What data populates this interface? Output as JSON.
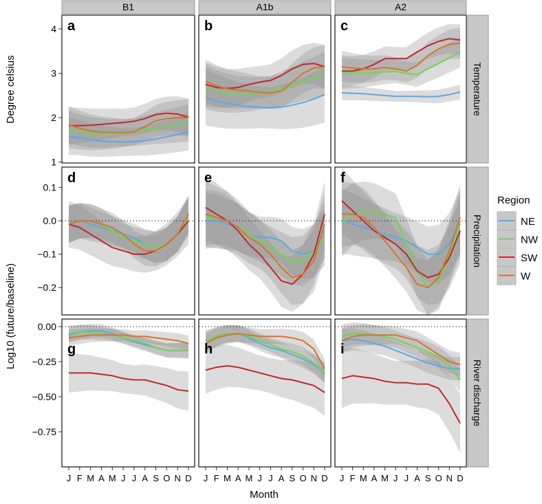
{
  "chart_data": {
    "type": "line",
    "layout": "faceted grid 3x3",
    "x": [
      "J",
      "F",
      "M",
      "A",
      "M",
      "J",
      "J",
      "A",
      "S",
      "O",
      "N",
      "D"
    ],
    "xlabel": "Month",
    "columns": [
      "B1",
      "A1b",
      "A2"
    ],
    "rows": [
      {
        "strip": "Temperature",
        "ylabel": "Degree celsius",
        "ylim": [
          0.98,
          4.31
        ],
        "ticks": [
          1,
          2,
          3,
          4
        ],
        "tick_labels": [
          "1",
          "2",
          "3",
          "4"
        ],
        "zero_line": false
      },
      {
        "strip": "Precipitation",
        "ylabel": "Log10 (future/baseline)",
        "ylim": [
          -0.282,
          0.161
        ],
        "ticks": [
          0.1,
          0.0,
          -0.1,
          -0.2
        ],
        "tick_labels": [
          "0.1",
          "0.0",
          "−0.1",
          "−0.2"
        ],
        "zero_line": true
      },
      {
        "strip": "River discharge",
        "ylabel": "Log10 (future/baseline)",
        "ylim": [
          -1.0,
          0.054
        ],
        "ticks": [
          0,
          -0.25,
          -0.5,
          -0.75
        ],
        "tick_labels": [
          "0.00",
          "−0.25",
          "−0.50",
          "−0.75"
        ],
        "zero_line": true
      }
    ],
    "shared_ylabel": "Log10 (future/baseline)",
    "temperature_ylabel": "Degree celsius",
    "legend": {
      "title": "Region",
      "placement": "right",
      "entries": [
        "NE",
        "NW",
        "SW",
        "W"
      ],
      "colors": [
        "#5aa9e6",
        "#6fd64a",
        "#c0282b",
        "#d9742a"
      ]
    },
    "panels": [
      {
        "label": "a",
        "row": 0,
        "col": 0,
        "band": [
          0.3,
          0.3,
          0.3,
          0.3
        ],
        "series": {
          "NE": [
            1.58,
            1.55,
            1.5,
            1.47,
            1.46,
            1.45,
            1.46,
            1.48,
            1.52,
            1.57,
            1.62,
            1.68
          ],
          "NW": [
            1.73,
            1.68,
            1.64,
            1.63,
            1.63,
            1.65,
            1.68,
            1.72,
            1.76,
            1.8,
            1.84,
            1.88
          ],
          "SW": [
            1.82,
            1.82,
            1.83,
            1.85,
            1.87,
            1.89,
            1.92,
            1.98,
            2.07,
            2.1,
            2.08,
            2.01
          ],
          "W": [
            1.84,
            1.76,
            1.7,
            1.67,
            1.67,
            1.66,
            1.68,
            1.8,
            1.93,
            1.98,
            2.0,
            2.0
          ]
        }
      },
      {
        "label": "b",
        "row": 0,
        "col": 1,
        "band": [
          0.45,
          0.35,
          0.35,
          0.35
        ],
        "series": {
          "NE": [
            2.45,
            2.38,
            2.32,
            2.28,
            2.25,
            2.23,
            2.22,
            2.24,
            2.28,
            2.34,
            2.42,
            2.52
          ],
          "NW": [
            2.68,
            2.6,
            2.55,
            2.53,
            2.53,
            2.55,
            2.58,
            2.65,
            2.73,
            2.82,
            2.9,
            3.0
          ],
          "SW": [
            2.75,
            2.68,
            2.66,
            2.68,
            2.75,
            2.8,
            2.84,
            2.95,
            3.1,
            3.2,
            3.22,
            3.15
          ],
          "W": [
            2.82,
            2.72,
            2.65,
            2.62,
            2.6,
            2.57,
            2.56,
            2.6,
            2.8,
            3.0,
            3.12,
            3.15
          ]
        }
      },
      {
        "label": "c",
        "row": 0,
        "col": 2,
        "band": [
          0.12,
          0.25,
          0.25,
          0.25
        ],
        "series": {
          "NE": [
            2.56,
            2.55,
            2.54,
            2.52,
            2.5,
            2.48,
            2.48,
            2.48,
            2.47,
            2.48,
            2.52,
            2.58
          ],
          "NW": [
            3.0,
            3.0,
            3.0,
            3.01,
            3.03,
            3.04,
            3.0,
            2.97,
            3.1,
            3.22,
            3.35,
            3.48
          ],
          "SW": [
            3.05,
            3.05,
            3.1,
            3.2,
            3.33,
            3.33,
            3.33,
            3.48,
            3.62,
            3.72,
            3.78,
            3.75
          ],
          "W": [
            3.15,
            3.12,
            3.1,
            3.1,
            3.13,
            3.1,
            3.05,
            3.18,
            3.4,
            3.55,
            3.65,
            3.68
          ]
        }
      },
      {
        "label": "d",
        "row": 1,
        "col": 0,
        "band": [
          0.04,
          0.04,
          0.05,
          0.04
        ],
        "series": {
          "NE": [
            -0.01,
            0.0,
            -0.01,
            -0.02,
            -0.03,
            -0.04,
            -0.05,
            -0.07,
            -0.08,
            -0.07,
            -0.04,
            0.02
          ],
          "NW": [
            -0.01,
            0.0,
            0.0,
            -0.01,
            -0.03,
            -0.05,
            -0.06,
            -0.07,
            -0.08,
            -0.07,
            -0.04,
            0.01
          ],
          "SW": [
            -0.01,
            -0.02,
            -0.04,
            -0.06,
            -0.08,
            -0.09,
            -0.1,
            -0.1,
            -0.09,
            -0.07,
            -0.04,
            0.0
          ],
          "W": [
            -0.01,
            0.0,
            0.0,
            -0.01,
            -0.02,
            -0.04,
            -0.07,
            -0.09,
            -0.09,
            -0.07,
            -0.04,
            0.02
          ]
        }
      },
      {
        "label": "e",
        "row": 1,
        "col": 1,
        "band": [
          0.06,
          0.06,
          0.07,
          0.07
        ],
        "series": {
          "NE": [
            0.0,
            0.0,
            -0.01,
            -0.02,
            -0.04,
            -0.05,
            -0.05,
            -0.06,
            -0.09,
            -0.1,
            -0.09,
            -0.03
          ],
          "NW": [
            0.01,
            0.01,
            0.0,
            -0.02,
            -0.04,
            -0.06,
            -0.08,
            -0.1,
            -0.12,
            -0.12,
            -0.09,
            -0.05
          ],
          "SW": [
            0.04,
            0.02,
            0.0,
            -0.03,
            -0.07,
            -0.1,
            -0.14,
            -0.18,
            -0.19,
            -0.16,
            -0.1,
            0.02
          ],
          "W": [
            0.02,
            0.01,
            0.0,
            -0.02,
            -0.05,
            -0.07,
            -0.1,
            -0.14,
            -0.17,
            -0.16,
            -0.12,
            -0.01
          ]
        }
      },
      {
        "label": "f",
        "row": 1,
        "col": 2,
        "band": [
          0.07,
          0.07,
          0.07,
          0.07
        ],
        "series": {
          "NE": [
            0.0,
            -0.01,
            -0.02,
            -0.03,
            -0.04,
            -0.05,
            -0.06,
            -0.08,
            -0.1,
            -0.1,
            -0.07,
            0.0
          ],
          "NW": [
            -0.01,
            0.02,
            0.03,
            0.03,
            0.02,
            0.01,
            -0.07,
            -0.15,
            -0.2,
            -0.18,
            -0.1,
            -0.01
          ],
          "SW": [
            0.06,
            0.03,
            0.0,
            -0.03,
            -0.05,
            -0.07,
            -0.1,
            -0.15,
            -0.17,
            -0.16,
            -0.11,
            -0.03
          ],
          "W": [
            0.02,
            0.02,
            0.01,
            -0.02,
            -0.06,
            -0.1,
            -0.14,
            -0.19,
            -0.2,
            -0.17,
            -0.09,
            0.01
          ]
        }
      },
      {
        "label": "g",
        "row": 2,
        "col": 0,
        "band": [
          0.04,
          0.04,
          0.1,
          0.04
        ],
        "series": {
          "NE": [
            -0.06,
            -0.04,
            -0.03,
            -0.03,
            -0.05,
            -0.08,
            -0.11,
            -0.13,
            -0.15,
            -0.17,
            -0.17,
            -0.17
          ],
          "NW": [
            -0.05,
            -0.04,
            -0.04,
            -0.05,
            -0.06,
            -0.08,
            -0.1,
            -0.12,
            -0.15,
            -0.17,
            -0.17,
            -0.17
          ],
          "SW": [
            -0.33,
            -0.33,
            -0.33,
            -0.34,
            -0.35,
            -0.37,
            -0.38,
            -0.38,
            -0.4,
            -0.42,
            -0.45,
            -0.46
          ],
          "W": [
            -0.08,
            -0.07,
            -0.06,
            -0.06,
            -0.06,
            -0.06,
            -0.07,
            -0.07,
            -0.08,
            -0.09,
            -0.1,
            -0.12
          ]
        }
      },
      {
        "label": "h",
        "row": 2,
        "col": 1,
        "band": [
          0.05,
          0.05,
          0.12,
          0.05
        ],
        "series": {
          "NE": [
            -0.1,
            -0.07,
            -0.05,
            -0.05,
            -0.08,
            -0.12,
            -0.15,
            -0.17,
            -0.2,
            -0.23,
            -0.27,
            -0.33
          ],
          "NW": [
            -0.1,
            -0.07,
            -0.05,
            -0.05,
            -0.07,
            -0.1,
            -0.13,
            -0.16,
            -0.18,
            -0.21,
            -0.26,
            -0.33
          ],
          "SW": [
            -0.31,
            -0.29,
            -0.28,
            -0.29,
            -0.31,
            -0.33,
            -0.35,
            -0.37,
            -0.38,
            -0.4,
            -0.42,
            -0.47
          ],
          "W": [
            -0.12,
            -0.08,
            -0.06,
            -0.05,
            -0.06,
            -0.07,
            -0.07,
            -0.07,
            -0.08,
            -0.1,
            -0.16,
            -0.3
          ]
        }
      },
      {
        "label": "i",
        "row": 2,
        "col": 2,
        "band": [
          0.06,
          0.06,
          0.15,
          0.06
        ],
        "series": {
          "NE": [
            -0.1,
            -0.09,
            -0.1,
            -0.12,
            -0.14,
            -0.17,
            -0.2,
            -0.23,
            -0.26,
            -0.28,
            -0.3,
            -0.3
          ],
          "NW": [
            -0.07,
            -0.05,
            -0.05,
            -0.06,
            -0.07,
            -0.09,
            -0.12,
            -0.15,
            -0.18,
            -0.22,
            -0.28,
            -0.38
          ],
          "SW": [
            -0.37,
            -0.35,
            -0.36,
            -0.37,
            -0.39,
            -0.4,
            -0.4,
            -0.41,
            -0.41,
            -0.44,
            -0.55,
            -0.69
          ],
          "W": [
            -0.1,
            -0.07,
            -0.06,
            -0.06,
            -0.06,
            -0.06,
            -0.08,
            -0.1,
            -0.15,
            -0.2,
            -0.25,
            -0.27
          ]
        }
      }
    ]
  }
}
